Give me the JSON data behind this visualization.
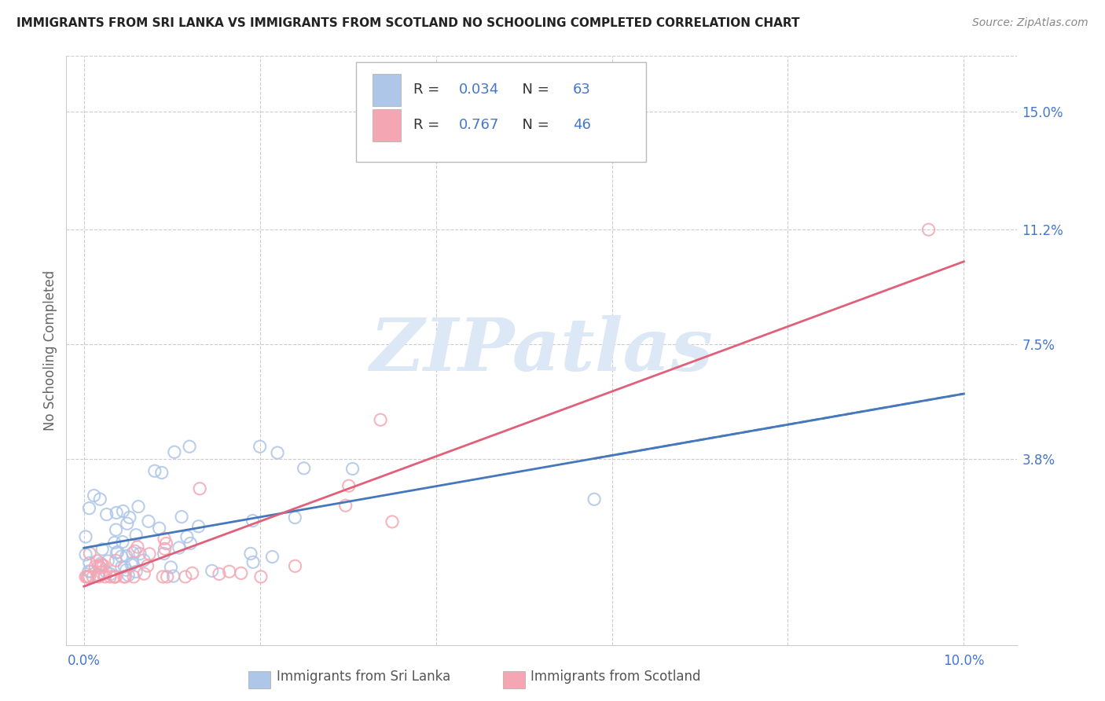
{
  "title": "IMMIGRANTS FROM SRI LANKA VS IMMIGRANTS FROM SCOTLAND NO SCHOOLING COMPLETED CORRELATION CHART",
  "source": "Source: ZipAtlas.com",
  "ylabel": "No Schooling Completed",
  "y_tick_labels_right": [
    "15.0%",
    "11.2%",
    "7.5%",
    "3.8%"
  ],
  "y_tick_positions_right": [
    0.15,
    0.112,
    0.075,
    0.038
  ],
  "xlim": [
    -0.002,
    0.106
  ],
  "ylim": [
    -0.022,
    0.168
  ],
  "grid_color": "#cccccc",
  "background_color": "#ffffff",
  "sri_lanka_color": "#aec6e8",
  "scotland_color": "#f4a7b3",
  "sri_lanka_line_color": "#4477bb",
  "scotland_line_color": "#e0607a",
  "sri_lanka_R": 0.034,
  "sri_lanka_N": 63,
  "scotland_R": 0.767,
  "scotland_N": 46,
  "legend_label_1": "Immigrants from Sri Lanka",
  "legend_label_2": "Immigrants from Scotland",
  "watermark": "ZIPatlas",
  "watermark_color": "#dce8f5",
  "title_color": "#222222",
  "axis_label_color": "#666666",
  "tick_label_color": "#4477cc",
  "x_tick_show": [
    0.0,
    0.1
  ],
  "x_tick_labels_show": [
    "0.0%",
    "10.0%"
  ],
  "x_grid_ticks": [
    0.0,
    0.02,
    0.04,
    0.06,
    0.08,
    0.1
  ]
}
